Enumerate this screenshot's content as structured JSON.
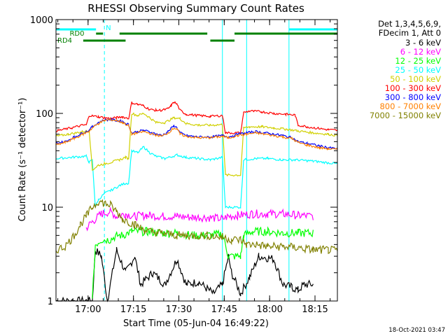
{
  "chart_data": {
    "type": "line",
    "title": "RHESSI Observing Summary Count Rates",
    "xlabel": "Start Time (05-Jun-04 16:49:22)",
    "ylabel": "Count Rate (s⁻¹ detector⁻¹)",
    "yscale": "log",
    "ylim": [
      1,
      1000
    ],
    "xlim_minutes": [
      0,
      93
    ],
    "y_ticks": [
      {
        "label": "1",
        "value": 1
      },
      {
        "label": "10",
        "value": 10
      },
      {
        "label": "100",
        "value": 100
      },
      {
        "label": "1000",
        "value": 1000
      }
    ],
    "x_ticks": [
      {
        "label": "17:00",
        "minutes": 10.6
      },
      {
        "label": "17:15",
        "minutes": 25.6
      },
      {
        "label": "17:30",
        "minutes": 40.6
      },
      {
        "label": "17:45",
        "minutes": 55.6
      },
      {
        "label": "18:00",
        "minutes": 70.6
      },
      {
        "label": "18:15",
        "minutes": 85.6
      }
    ],
    "legend_header": [
      "Det 1,3,4,5,6,9,",
      "FDecim 1, Att 0"
    ],
    "legend_position": "right",
    "series": [
      {
        "name": "3 - 6 keV",
        "color": "#000000",
        "points": [
          [
            0,
            1.0
          ],
          [
            12,
            1.0
          ],
          [
            13,
            3.5
          ],
          [
            15,
            3.0
          ],
          [
            17,
            1.0
          ],
          [
            20,
            3.5
          ],
          [
            23,
            2.0
          ],
          [
            26,
            3.0
          ],
          [
            28,
            1.5
          ],
          [
            32,
            2.0
          ],
          [
            36,
            1.5
          ],
          [
            40,
            2.8
          ],
          [
            43,
            1.5
          ],
          [
            47,
            1.6
          ],
          [
            52,
            1.2
          ],
          [
            55,
            1.5
          ],
          [
            57,
            3.0
          ],
          [
            58,
            2.0
          ],
          [
            61,
            1.2
          ],
          [
            64,
            1.8
          ],
          [
            67,
            3.0
          ],
          [
            72,
            2.8
          ],
          [
            75,
            1.5
          ],
          [
            78,
            1.4
          ],
          [
            80,
            1.3
          ],
          [
            82,
            1.5
          ],
          [
            85,
            1.5
          ]
        ]
      },
      {
        "name": "6 - 12 keV",
        "color": "#ff00ff",
        "points": [
          [
            10,
            6
          ],
          [
            12,
            7
          ],
          [
            15,
            8.5
          ],
          [
            18,
            9.0
          ],
          [
            20,
            8.0
          ],
          [
            23,
            8.5
          ],
          [
            26,
            8.0
          ],
          [
            30,
            8.2
          ],
          [
            35,
            8.0
          ],
          [
            40,
            8.0
          ],
          [
            45,
            7.8
          ],
          [
            50,
            7.8
          ],
          [
            55,
            7.5
          ],
          [
            57,
            8.0
          ],
          [
            60,
            8.2
          ],
          [
            65,
            8.5
          ],
          [
            70,
            8.5
          ],
          [
            75,
            8.5
          ],
          [
            80,
            8.2
          ],
          [
            85,
            8.0
          ]
        ]
      },
      {
        "name": "12 - 25 keV",
        "color": "#00ff00",
        "points": [
          [
            12,
            1.0
          ],
          [
            13,
            4.0
          ],
          [
            15,
            4.5
          ],
          [
            18,
            4.5
          ],
          [
            20,
            5.0
          ],
          [
            22,
            5.0
          ],
          [
            25,
            5.5
          ],
          [
            30,
            5.5
          ],
          [
            35,
            5.3
          ],
          [
            40,
            5.3
          ],
          [
            45,
            5.0
          ],
          [
            50,
            5.0
          ],
          [
            55,
            5.2
          ],
          [
            57,
            3.0
          ],
          [
            61,
            3.0
          ],
          [
            62,
            5.0
          ],
          [
            65,
            5.5
          ],
          [
            70,
            5.5
          ],
          [
            75,
            5.3
          ],
          [
            80,
            5.3
          ],
          [
            85,
            5.3
          ]
        ]
      },
      {
        "name": "25 - 50 keV",
        "color": "#00ffff",
        "points": [
          [
            0,
            33
          ],
          [
            10,
            35
          ],
          [
            11,
            30
          ],
          [
            12,
            32
          ],
          [
            13,
            10
          ],
          [
            14,
            12
          ],
          [
            16,
            14
          ],
          [
            18,
            15
          ],
          [
            21,
            17
          ],
          [
            23,
            18
          ],
          [
            24,
            18
          ],
          [
            25,
            40
          ],
          [
            27,
            38
          ],
          [
            29,
            44
          ],
          [
            31,
            38
          ],
          [
            33,
            35
          ],
          [
            36,
            33
          ],
          [
            40,
            36
          ],
          [
            43,
            34
          ],
          [
            47,
            33
          ],
          [
            51,
            32
          ],
          [
            55,
            34
          ],
          [
            56,
            10
          ],
          [
            61,
            10
          ],
          [
            62,
            32
          ],
          [
            66,
            33
          ],
          [
            70,
            33
          ],
          [
            75,
            32
          ],
          [
            79,
            32
          ],
          [
            85,
            31
          ],
          [
            93,
            29
          ]
        ]
      },
      {
        "name": "50 - 100 keV",
        "color": "#d0d000",
        "points": [
          [
            0,
            57
          ],
          [
            4,
            60
          ],
          [
            8,
            63
          ],
          [
            10,
            65
          ],
          [
            11,
            65
          ],
          [
            12,
            25
          ],
          [
            14,
            28
          ],
          [
            16,
            29
          ],
          [
            18,
            30
          ],
          [
            21,
            32
          ],
          [
            23,
            34
          ],
          [
            24,
            33
          ],
          [
            25,
            100
          ],
          [
            27,
            95
          ],
          [
            29,
            100
          ],
          [
            31,
            90
          ],
          [
            33,
            80
          ],
          [
            36,
            80
          ],
          [
            39,
            90
          ],
          [
            41,
            88
          ],
          [
            43,
            78
          ],
          [
            47,
            75
          ],
          [
            51,
            75
          ],
          [
            55,
            76
          ],
          [
            56,
            22
          ],
          [
            61,
            22
          ],
          [
            62,
            70
          ],
          [
            64,
            72
          ],
          [
            68,
            72
          ],
          [
            72,
            70
          ],
          [
            76,
            68
          ],
          [
            80,
            65
          ],
          [
            85,
            62
          ],
          [
            90,
            60
          ],
          [
            93,
            58
          ]
        ]
      },
      {
        "name": "100 - 300 keV",
        "color": "#ff0000",
        "points": [
          [
            0,
            65
          ],
          [
            5,
            70
          ],
          [
            9,
            75
          ],
          [
            10,
            75
          ],
          [
            11,
            95
          ],
          [
            14,
            92
          ],
          [
            16,
            90
          ],
          [
            18,
            88
          ],
          [
            20,
            90
          ],
          [
            22,
            92
          ],
          [
            24,
            88
          ],
          [
            25,
            130
          ],
          [
            27,
            125
          ],
          [
            29,
            120
          ],
          [
            31,
            110
          ],
          [
            33,
            108
          ],
          [
            35,
            108
          ],
          [
            37,
            112
          ],
          [
            38,
            120
          ],
          [
            39,
            132
          ],
          [
            40,
            125
          ],
          [
            41,
            108
          ],
          [
            43,
            98
          ],
          [
            47,
            95
          ],
          [
            51,
            93
          ],
          [
            55,
            95
          ],
          [
            56,
            62
          ],
          [
            61,
            62
          ],
          [
            62,
            102
          ],
          [
            64,
            106
          ],
          [
            68,
            104
          ],
          [
            72,
            100
          ],
          [
            76,
            98
          ],
          [
            79,
            96
          ],
          [
            80,
            75
          ],
          [
            83,
            72
          ],
          [
            87,
            69
          ],
          [
            90,
            67
          ],
          [
            93,
            66
          ]
        ]
      },
      {
        "name": "300 - 800 keV",
        "color": "#0000ff",
        "points": [
          [
            0,
            48
          ],
          [
            3,
            50
          ],
          [
            6,
            56
          ],
          [
            9,
            62
          ],
          [
            11,
            66
          ],
          [
            12,
            72
          ],
          [
            14,
            80
          ],
          [
            16,
            85
          ],
          [
            18,
            86
          ],
          [
            20,
            84
          ],
          [
            22,
            82
          ],
          [
            24,
            76
          ],
          [
            25,
            62
          ],
          [
            27,
            64
          ],
          [
            29,
            66
          ],
          [
            32,
            62
          ],
          [
            35,
            58
          ],
          [
            37,
            64
          ],
          [
            39,
            74
          ],
          [
            40,
            70
          ],
          [
            41,
            62
          ],
          [
            43,
            58
          ],
          [
            47,
            56
          ],
          [
            51,
            56
          ],
          [
            55,
            58
          ],
          [
            57,
            56
          ],
          [
            60,
            60
          ],
          [
            63,
            62
          ],
          [
            66,
            64
          ],
          [
            69,
            62
          ],
          [
            72,
            60
          ],
          [
            75,
            58
          ],
          [
            78,
            55
          ],
          [
            80,
            50
          ],
          [
            83,
            48
          ],
          [
            87,
            45
          ],
          [
            90,
            43
          ],
          [
            93,
            42
          ]
        ]
      },
      {
        "name": "800 - 7000 keV",
        "color": "#ff8000",
        "points": [
          [
            0,
            46
          ],
          [
            3,
            49
          ],
          [
            6,
            54
          ],
          [
            9,
            60
          ],
          [
            11,
            65
          ],
          [
            12,
            70
          ],
          [
            14,
            78
          ],
          [
            16,
            84
          ],
          [
            18,
            86
          ],
          [
            20,
            84
          ],
          [
            22,
            80
          ],
          [
            24,
            74
          ],
          [
            25,
            60
          ],
          [
            27,
            62
          ],
          [
            29,
            64
          ],
          [
            32,
            60
          ],
          [
            35,
            57
          ],
          [
            37,
            62
          ],
          [
            39,
            70
          ],
          [
            40,
            68
          ],
          [
            41,
            60
          ],
          [
            43,
            57
          ],
          [
            47,
            55
          ],
          [
            51,
            55
          ],
          [
            55,
            57
          ],
          [
            57,
            55
          ],
          [
            60,
            58
          ],
          [
            63,
            60
          ],
          [
            66,
            62
          ],
          [
            69,
            60
          ],
          [
            72,
            58
          ],
          [
            75,
            56
          ],
          [
            78,
            54
          ],
          [
            80,
            49
          ],
          [
            83,
            46
          ],
          [
            87,
            43
          ],
          [
            90,
            42
          ],
          [
            93,
            41
          ]
        ]
      },
      {
        "name": "7000 - 15000 keV",
        "color": "#808000",
        "points": [
          [
            0,
            3.5
          ],
          [
            3,
            3.8
          ],
          [
            6,
            5
          ],
          [
            8,
            6.5
          ],
          [
            10,
            8
          ],
          [
            12,
            10
          ],
          [
            14,
            11.5
          ],
          [
            16,
            11
          ],
          [
            18,
            10.5
          ],
          [
            20,
            9
          ],
          [
            22,
            7.5
          ],
          [
            24,
            7
          ],
          [
            26,
            6.5
          ],
          [
            28,
            6
          ],
          [
            31,
            5.5
          ],
          [
            35,
            5.3
          ],
          [
            40,
            5.0
          ],
          [
            45,
            5.0
          ],
          [
            50,
            5.0
          ],
          [
            55,
            4.8
          ],
          [
            58,
            4.5
          ],
          [
            61,
            4.5
          ],
          [
            63,
            4.0
          ],
          [
            66,
            4.0
          ],
          [
            70,
            3.8
          ],
          [
            75,
            3.8
          ],
          [
            80,
            3.7
          ],
          [
            85,
            3.5
          ],
          [
            90,
            3.5
          ],
          [
            93,
            3.4
          ]
        ]
      }
    ],
    "annotations": [
      {
        "text": "N",
        "color": "#00ffff",
        "start_min": 0,
        "end_min": 16
      },
      {
        "text": "RD0",
        "color": "#008000",
        "start_min": 10,
        "end_min": 55
      },
      {
        "text": "RD4",
        "color": "#008000",
        "start_min": 9,
        "end_min": 23
      }
    ],
    "vertical_markers_min": [
      0,
      16,
      55,
      63,
      77,
      93
    ],
    "timestamp": "18-Oct-2021 03:47"
  }
}
